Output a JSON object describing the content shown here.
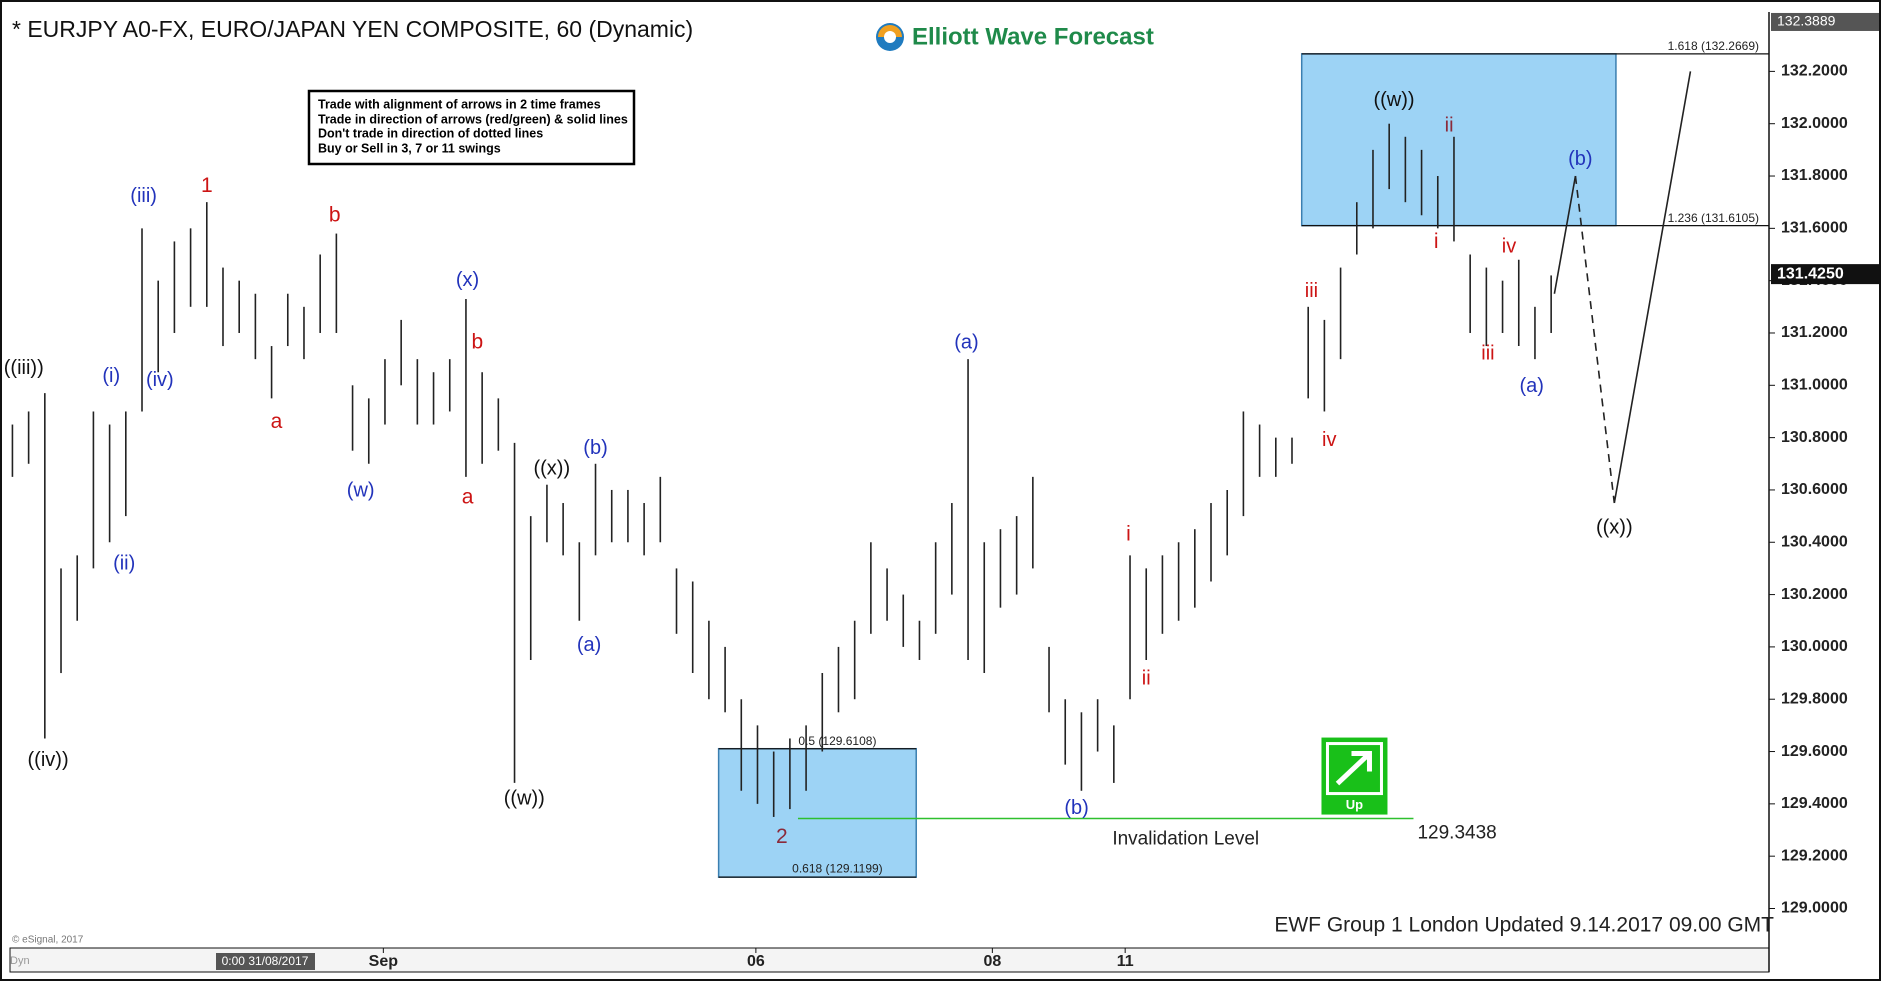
{
  "chart_data": {
    "type": "ohlc",
    "title": "* EURJPY A0-FX, EURO/JAPAN YEN COMPOSITE, 60 (Dynamic)",
    "logo": "Elliott Wave Forecast",
    "notes": [
      "Trade with alignment of arrows in 2 time frames",
      "Trade in direction of arrows (red/green) & solid lines",
      "Don't trade in direction of dotted lines",
      "Buy or Sell in 3, 7 or 11 swings"
    ],
    "footer": "EWF Group 1 London Updated 9.14.2017 09.00 GMT",
    "copyright": "© eSignal, 2017",
    "corner": "Dyn",
    "start_label": "0:00 31/08/2017",
    "signal": "Up",
    "signal_color": "#19c019",
    "xlim": [
      -0.15,
      108.45
    ],
    "ylim": [
      128.849,
      132.427
    ],
    "xticks": [
      {
        "value": 22.9,
        "label": "Sep"
      },
      {
        "value": 45.9,
        "label": "06"
      },
      {
        "value": 60.5,
        "label": "08"
      },
      {
        "value": 68.7,
        "label": "11"
      }
    ],
    "yticks": [
      {
        "value": 129.0,
        "label": "129.0000"
      },
      {
        "value": 129.2,
        "label": "129.2000"
      },
      {
        "value": 129.4,
        "label": "129.4000"
      },
      {
        "value": 129.6,
        "label": "129.6000"
      },
      {
        "value": 129.8,
        "label": "129.8000"
      },
      {
        "value": 130.0,
        "label": "130.0000"
      },
      {
        "value": 130.2,
        "label": "130.2000"
      },
      {
        "value": 130.4,
        "label": "130.4000"
      },
      {
        "value": 130.6,
        "label": "130.6000"
      },
      {
        "value": 130.8,
        "label": "130.8000"
      },
      {
        "value": 131.0,
        "label": "131.0000"
      },
      {
        "value": 131.2,
        "label": "131.2000"
      },
      {
        "value": 131.4,
        "label": "131.4000"
      },
      {
        "value": 131.6,
        "label": "131.6000"
      },
      {
        "value": 131.8,
        "label": "131.8000"
      },
      {
        "value": 132.0,
        "label": "132.0000"
      },
      {
        "value": 132.2,
        "label": "132.2000"
      }
    ],
    "last_price": {
      "value": 131.425,
      "label": "131.4250"
    },
    "top_price": 132.3889,
    "series": [
      {
        "color": "#222222",
        "x": [
          0,
          1,
          2,
          3,
          4,
          5,
          6,
          7,
          8,
          9,
          10,
          11,
          12,
          13,
          14,
          15,
          16,
          17,
          18,
          19,
          20,
          21,
          22,
          23,
          24,
          25,
          26,
          27,
          28,
          29,
          30,
          31,
          32,
          33,
          34,
          35,
          36,
          37,
          38,
          39,
          40,
          41,
          42,
          43,
          44,
          45,
          46,
          47,
          48,
          49,
          50,
          51,
          52,
          53,
          54,
          55,
          56,
          57,
          58,
          59,
          60,
          61,
          62,
          63,
          64,
          65,
          66,
          67,
          68,
          69,
          70,
          71,
          72,
          73,
          74,
          75,
          76,
          77,
          78,
          79,
          80,
          81,
          82,
          83,
          84,
          85,
          86,
          87,
          88,
          89,
          90,
          91,
          92,
          93,
          94,
          95
        ],
        "high": [
          130.85,
          130.9,
          130.97,
          130.3,
          130.35,
          130.9,
          130.85,
          130.9,
          131.6,
          131.4,
          131.55,
          131.6,
          131.7,
          131.45,
          131.4,
          131.35,
          131.15,
          131.35,
          131.3,
          131.5,
          131.58,
          131.0,
          130.95,
          131.1,
          131.25,
          131.1,
          131.05,
          131.1,
          131.33,
          131.05,
          130.95,
          130.78,
          130.5,
          130.62,
          130.55,
          130.4,
          130.7,
          130.6,
          130.6,
          130.55,
          130.65,
          130.3,
          130.25,
          130.1,
          130.0,
          129.8,
          129.7,
          129.6,
          129.65,
          129.7,
          129.9,
          130.0,
          130.1,
          130.4,
          130.3,
          130.2,
          130.1,
          130.4,
          130.55,
          131.1,
          130.4,
          130.45,
          130.5,
          130.65,
          130.0,
          129.8,
          129.75,
          129.8,
          129.7,
          130.35,
          130.3,
          130.35,
          130.4,
          130.45,
          130.55,
          130.6,
          130.9,
          130.85,
          130.8,
          130.8,
          131.3,
          131.25,
          131.45,
          131.7,
          131.9,
          132.0,
          131.95,
          131.9,
          131.8,
          131.95,
          131.5,
          131.45,
          131.4,
          131.48,
          131.3,
          131.42
        ],
        "low": [
          130.65,
          130.7,
          129.65,
          129.9,
          130.1,
          130.3,
          130.4,
          130.5,
          130.9,
          131.05,
          131.2,
          131.3,
          131.3,
          131.15,
          131.2,
          131.1,
          130.95,
          131.15,
          131.1,
          131.2,
          131.2,
          130.75,
          130.7,
          130.85,
          131.0,
          130.85,
          130.85,
          130.9,
          130.65,
          130.7,
          130.75,
          129.48,
          129.95,
          130.4,
          130.35,
          130.1,
          130.35,
          130.4,
          130.4,
          130.35,
          130.4,
          130.05,
          129.9,
          129.8,
          129.75,
          129.45,
          129.4,
          129.35,
          129.38,
          129.45,
          129.6,
          129.75,
          129.8,
          130.05,
          130.1,
          130.0,
          129.95,
          130.05,
          130.2,
          129.95,
          129.9,
          130.15,
          130.2,
          130.3,
          129.75,
          129.55,
          129.45,
          129.6,
          129.48,
          129.8,
          129.95,
          130.05,
          130.1,
          130.15,
          130.25,
          130.35,
          130.5,
          130.65,
          130.65,
          130.7,
          130.95,
          130.9,
          131.1,
          131.5,
          131.6,
          131.75,
          131.7,
          131.65,
          131.6,
          131.55,
          131.2,
          131.15,
          131.2,
          131.15,
          131.1,
          131.2
        ]
      }
    ],
    "zones": [
      {
        "x": [
          79.6,
          99.0
        ],
        "y": [
          132.2669,
          131.6105
        ],
        "color": "#9dd3f5",
        "top_label": "1.618 (132.2669)",
        "bottom_label": "1.236 (131.6105)"
      },
      {
        "x": [
          43.6,
          55.8
        ],
        "y": [
          129.6108,
          129.1199
        ],
        "color": "#9dd3f5",
        "top_label": "0.5 (129.6108)",
        "bottom_label": "0.618 (129.1199)"
      }
    ],
    "invalidation": {
      "value": 129.3438,
      "x": [
        48.5,
        86.5
      ],
      "label": "Invalidation Level",
      "color": "#2ec02e"
    },
    "projection": {
      "x": [
        95.2,
        96.5,
        98.9,
        103.6
      ],
      "y": [
        131.35,
        131.8,
        130.55,
        132.2
      ],
      "dashed_segment": 1
    },
    "annotations": [
      {
        "text": "((iii))",
        "x": 0.7,
        "y": 131.064,
        "color": "#111111"
      },
      {
        "text": "((iv))",
        "x": 2.2,
        "y": 129.564,
        "color": "#111111"
      },
      {
        "text": "(i)",
        "x": 6.1,
        "y": 131.032,
        "color": "#2233bb"
      },
      {
        "text": "(ii)",
        "x": 6.9,
        "y": 130.317,
        "color": "#2233bb"
      },
      {
        "text": "(iii)",
        "x": 8.1,
        "y": 131.72,
        "color": "#2233bb"
      },
      {
        "text": "(iv)",
        "x": 9.1,
        "y": 131.018,
        "color": "#2233bb"
      },
      {
        "text": "1",
        "x": 12.0,
        "y": 131.761,
        "color": "#cc1414"
      },
      {
        "text": "a",
        "x": 16.3,
        "y": 130.858,
        "color": "#cc1414"
      },
      {
        "text": "b",
        "x": 19.9,
        "y": 131.647,
        "color": "#cc1414"
      },
      {
        "text": "(w)",
        "x": 21.5,
        "y": 130.596,
        "color": "#2233bb"
      },
      {
        "text": "(x)",
        "x": 28.1,
        "y": 131.399,
        "color": "#2233bb"
      },
      {
        "text": "b",
        "x": 28.7,
        "y": 131.161,
        "color": "#cc1414"
      },
      {
        "text": "a",
        "x": 28.1,
        "y": 130.569,
        "color": "#cc1414"
      },
      {
        "text": "((x))",
        "x": 33.3,
        "y": 130.679,
        "color": "#111111"
      },
      {
        "text": "((w))",
        "x": 31.6,
        "y": 129.417,
        "color": "#111111"
      },
      {
        "text": "(b)",
        "x": 36.0,
        "y": 130.757,
        "color": "#2233bb"
      },
      {
        "text": "(a)",
        "x": 35.6,
        "y": 130.005,
        "color": "#2233bb"
      },
      {
        "text": "2",
        "x": 47.5,
        "y": 129.271,
        "color": "#8b2a3a"
      },
      {
        "text": "(a)",
        "x": 58.9,
        "y": 131.161,
        "color": "#2233bb"
      },
      {
        "text": "(b)",
        "x": 65.7,
        "y": 129.381,
        "color": "#2233bb"
      },
      {
        "text": "i",
        "x": 68.9,
        "y": 130.427,
        "color": "#cc1414"
      },
      {
        "text": "ii",
        "x": 70.0,
        "y": 129.876,
        "color": "#cc1414"
      },
      {
        "text": "iii",
        "x": 80.2,
        "y": 131.358,
        "color": "#cc1414"
      },
      {
        "text": "iv",
        "x": 81.3,
        "y": 130.789,
        "color": "#cc1414"
      },
      {
        "text": "((w))",
        "x": 85.3,
        "y": 132.087,
        "color": "#111111"
      },
      {
        "text": "ii",
        "x": 88.7,
        "y": 131.991,
        "color": "#8b2a3a"
      },
      {
        "text": "i",
        "x": 87.9,
        "y": 131.546,
        "color": "#cc1414"
      },
      {
        "text": "iv",
        "x": 92.4,
        "y": 131.528,
        "color": "#cc1414"
      },
      {
        "text": "iii",
        "x": 91.1,
        "y": 131.119,
        "color": "#cc1414"
      },
      {
        "text": "(a)",
        "x": 93.8,
        "y": 130.995,
        "color": "#2233bb"
      },
      {
        "text": "(b)",
        "x": 96.8,
        "y": 131.862,
        "color": "#2233bb"
      },
      {
        "text": "((x))",
        "x": 98.9,
        "y": 130.454,
        "color": "#111111"
      }
    ]
  }
}
